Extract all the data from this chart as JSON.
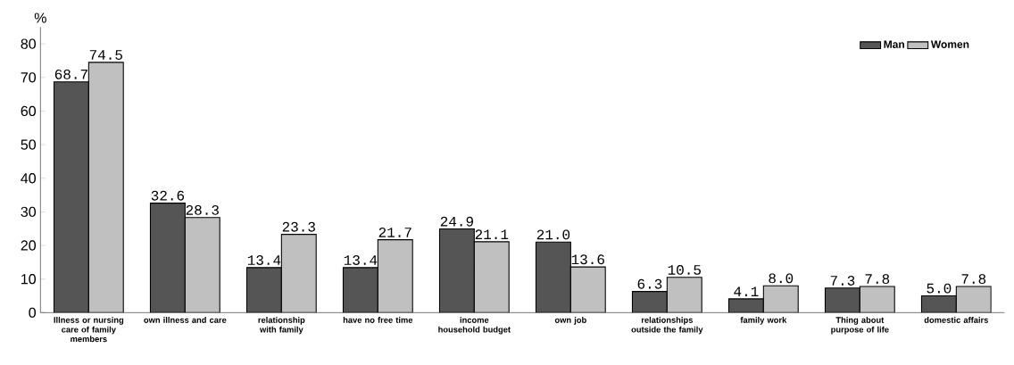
{
  "chart_data": {
    "type": "bar",
    "ylabel": "%",
    "categories": [
      "Illness or nursing care of family members",
      "own illness and care",
      "relationship with family",
      "have no free time",
      "income household budget",
      "own job",
      "relationships outside the family",
      "family work",
      "Thing about purpose of life",
      "domestic affairs"
    ],
    "series": [
      {
        "name": "Man",
        "color": "#555555",
        "values": [
          68.7,
          32.6,
          13.4,
          13.4,
          24.9,
          21.0,
          6.3,
          4.1,
          7.3,
          5.0
        ],
        "value_labels": [
          "68.7",
          "32.6",
          "13.4",
          "13.4",
          "24.9",
          "21.0",
          "6.3",
          "4.1",
          "7.3",
          "5.0"
        ]
      },
      {
        "name": "Women",
        "color": "#c0c0c0",
        "values": [
          74.5,
          28.3,
          23.3,
          21.7,
          21.1,
          13.6,
          10.5,
          8.0,
          7.8,
          7.8
        ],
        "value_labels": [
          "74.5",
          "28.3",
          "23.3",
          "21.7",
          "21.1",
          "13.6",
          "10.5",
          "8.0",
          "7.8",
          "7.8"
        ]
      }
    ],
    "ylim": [
      0,
      85
    ],
    "yticks": [
      0,
      10,
      20,
      30,
      40,
      50,
      60,
      70,
      80
    ],
    "grid": false,
    "legend": "top right"
  }
}
